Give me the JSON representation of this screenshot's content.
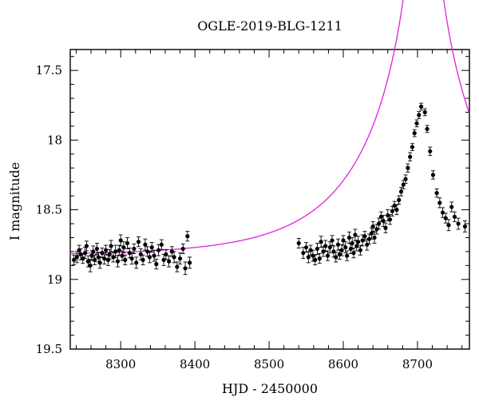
{
  "chart_data": {
    "type": "scatter",
    "title": "OGLE-2019-BLG-1211",
    "xlabel": "HJD - 2450000",
    "ylabel": "I magnitude",
    "xlim": [
      8232,
      8770
    ],
    "ylim": [
      19.5,
      17.35
    ],
    "y_inverted": true,
    "x_ticks": [
      8300,
      8400,
      8500,
      8600,
      8700
    ],
    "x_tick_labels": [
      "8300",
      "8400",
      "8500",
      "8600",
      "8700"
    ],
    "y_ticks": [
      17.5,
      18,
      18.5,
      19,
      19.5
    ],
    "y_tick_labels": [
      "17.5",
      "18",
      "18.5",
      "19",
      "19.5"
    ],
    "grid": false,
    "model_color": "#e020e0",
    "marker_color": "#000000",
    "model": {
      "baseline_mag": 18.83,
      "t0": 8708,
      "u0": 0.04,
      "tE": 150
    },
    "series": [
      {
        "x": [
          8237,
          8241,
          8244,
          8246,
          8249,
          8252,
          8254,
          8256,
          8259,
          8261,
          8263,
          8265,
          8268,
          8270,
          8272,
          8275,
          8278,
          8280,
          8283,
          8285,
          8287,
          8290,
          8293,
          8296,
          8298,
          8300,
          8302,
          8304,
          8306,
          8309,
          8312,
          8315,
          8318,
          8321,
          8324,
          8327,
          8330,
          8333,
          8336,
          8339,
          8342,
          8345,
          8348,
          8351,
          8355,
          8358,
          8361,
          8365,
          8369,
          8372,
          8376,
          8380,
          8384,
          8387,
          8390,
          8393,
          8540,
          8546,
          8550,
          8553,
          8556,
          8559,
          8562,
          8565,
          8568,
          8570,
          8573,
          8576,
          8579,
          8582,
          8585,
          8587,
          8590,
          8593,
          8595,
          8598,
          8600,
          8603,
          8605,
          8608,
          8610,
          8612,
          8614,
          8616,
          8618,
          8620,
          8623,
          8626,
          8629,
          8632,
          8635,
          8638,
          8640,
          8642,
          8645,
          8648,
          8651,
          8654,
          8657,
          8660,
          8663,
          8666,
          8669,
          8672,
          8675,
          8678,
          8681,
          8684,
          8687,
          8690,
          8693,
          8696,
          8699,
          8702,
          8705,
          8710,
          8713,
          8717,
          8721,
          8726,
          8730,
          8734,
          8738,
          8742,
          8746,
          8750,
          8755,
          8764
        ],
        "y": [
          18.86,
          18.84,
          18.79,
          18.82,
          18.85,
          18.81,
          18.76,
          18.87,
          18.9,
          18.83,
          18.8,
          18.86,
          18.78,
          18.84,
          18.88,
          18.81,
          18.85,
          18.79,
          18.86,
          18.82,
          18.76,
          18.84,
          18.8,
          18.87,
          18.79,
          18.72,
          18.83,
          18.77,
          18.86,
          18.74,
          18.81,
          18.85,
          18.78,
          18.88,
          18.73,
          18.82,
          18.86,
          18.75,
          18.8,
          18.84,
          18.77,
          18.83,
          18.89,
          18.79,
          18.75,
          18.86,
          18.82,
          18.87,
          18.8,
          18.84,
          18.91,
          18.85,
          18.78,
          18.92,
          18.69,
          18.88,
          18.74,
          18.81,
          18.77,
          18.84,
          18.79,
          18.83,
          18.86,
          18.78,
          18.85,
          18.73,
          18.8,
          18.76,
          18.83,
          18.77,
          18.72,
          18.8,
          18.84,
          18.75,
          18.82,
          18.79,
          18.72,
          18.77,
          18.83,
          18.7,
          18.78,
          18.74,
          18.81,
          18.68,
          18.76,
          18.73,
          18.79,
          18.72,
          18.69,
          18.75,
          18.71,
          18.67,
          18.62,
          18.7,
          18.64,
          18.6,
          18.55,
          18.58,
          18.63,
          18.54,
          18.57,
          18.51,
          18.47,
          18.5,
          18.43,
          18.37,
          18.32,
          18.28,
          18.2,
          18.12,
          18.05,
          17.95,
          17.88,
          17.82,
          17.76,
          17.8,
          17.92,
          18.08,
          18.25,
          18.38,
          18.45,
          18.52,
          18.56,
          18.61,
          18.48,
          18.55,
          18.6,
          18.62
        ],
        "errors": [
          0.035,
          0.04,
          0.035,
          0.04,
          0.035,
          0.04,
          0.035,
          0.04,
          0.045,
          0.035,
          0.04,
          0.035,
          0.04,
          0.035,
          0.04,
          0.035,
          0.04,
          0.035,
          0.04,
          0.035,
          0.04,
          0.035,
          0.045,
          0.04,
          0.035,
          0.04,
          0.035,
          0.04,
          0.035,
          0.04,
          0.035,
          0.04,
          0.035,
          0.04,
          0.035,
          0.04,
          0.035,
          0.04,
          0.035,
          0.04,
          0.035,
          0.04,
          0.035,
          0.04,
          0.035,
          0.04,
          0.035,
          0.04,
          0.035,
          0.04,
          0.035,
          0.04,
          0.035,
          0.045,
          0.035,
          0.04,
          0.035,
          0.04,
          0.035,
          0.04,
          0.035,
          0.04,
          0.035,
          0.04,
          0.035,
          0.04,
          0.035,
          0.04,
          0.035,
          0.04,
          0.035,
          0.04,
          0.035,
          0.04,
          0.035,
          0.04,
          0.035,
          0.04,
          0.035,
          0.04,
          0.035,
          0.04,
          0.035,
          0.04,
          0.035,
          0.04,
          0.035,
          0.04,
          0.035,
          0.04,
          0.035,
          0.04,
          0.035,
          0.04,
          0.035,
          0.04,
          0.035,
          0.04,
          0.035,
          0.04,
          0.035,
          0.035,
          0.03,
          0.035,
          0.03,
          0.03,
          0.03,
          0.03,
          0.03,
          0.03,
          0.025,
          0.025,
          0.025,
          0.025,
          0.025,
          0.025,
          0.025,
          0.03,
          0.03,
          0.03,
          0.035,
          0.035,
          0.035,
          0.04,
          0.035,
          0.035,
          0.04,
          0.04
        ]
      }
    ]
  }
}
